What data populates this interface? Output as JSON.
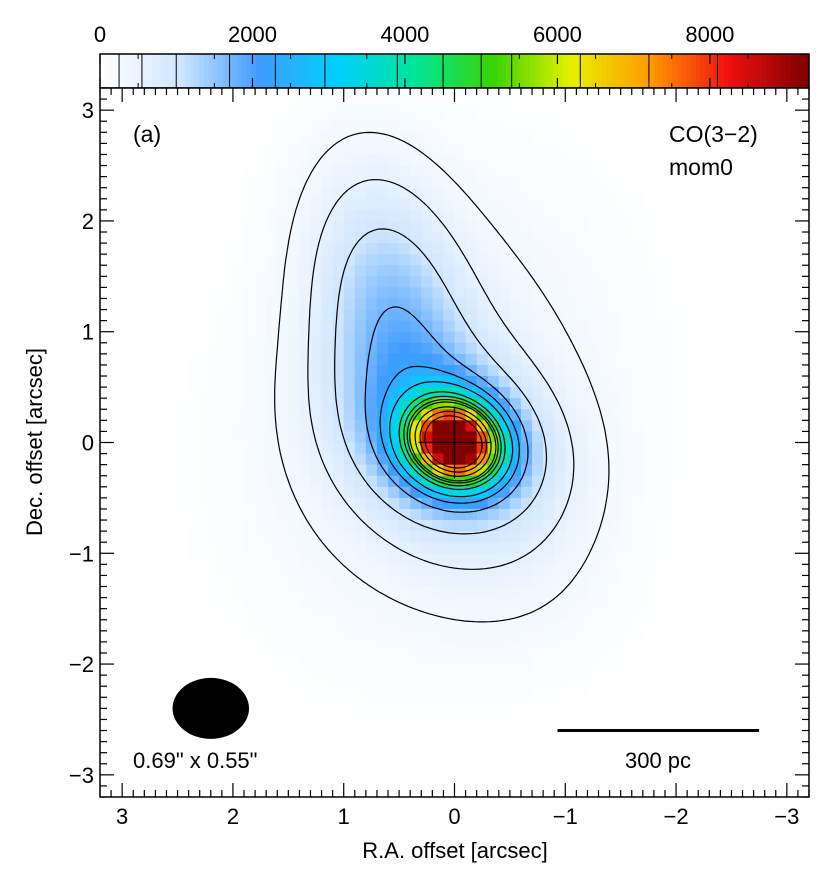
{
  "chart_data": {
    "type": "heatmap",
    "panel_label": "(a)",
    "annotation": [
      "CO(3−2)",
      "mom0"
    ],
    "xlabel": "R.A. offset [arcsec]",
    "ylabel": "Dec. offset [arcsec]",
    "xlim": [
      3.2,
      -3.2
    ],
    "ylim": [
      -3.2,
      3.2
    ],
    "x_ticks": [
      3,
      2,
      1,
      0,
      -1,
      -2,
      -3
    ],
    "y_ticks": [
      3,
      2,
      1,
      0,
      -1,
      -2,
      -3
    ],
    "x_tick_labels": [
      "3",
      "2",
      "1",
      "0",
      "−1",
      "−2",
      "−3"
    ],
    "y_tick_labels": [
      "3",
      "2",
      "1",
      "0",
      "−1",
      "−2",
      "−3"
    ],
    "colorbar": {
      "range": [
        0,
        9300
      ],
      "ticks": [
        0,
        2000,
        4000,
        6000,
        8000
      ],
      "tick_labels": [
        "0",
        "2000",
        "4000",
        "6000",
        "8000"
      ],
      "contour_levels": [
        250,
        550,
        1000,
        1700,
        2300,
        2950,
        3900,
        4500,
        5000,
        5400,
        6300,
        7200,
        8100
      ]
    },
    "peak": {
      "x": 0.0,
      "y": 0.0,
      "value": 9300
    },
    "components": [
      {
        "x": 0.0,
        "y": 0.0,
        "sx": 0.28,
        "sy": 0.24,
        "theta": 0.45,
        "amp": 9200
      },
      {
        "x": 0.0,
        "y": 0.0,
        "sx": 0.65,
        "sy": 0.5,
        "theta": 0.5,
        "amp": 1500
      },
      {
        "x": 0.55,
        "y": 1.1,
        "sx": 0.45,
        "sy": 0.9,
        "theta": -0.2,
        "amp": 1300
      },
      {
        "x": 0.2,
        "y": 0.3,
        "sx": 1.0,
        "sy": 1.3,
        "theta": 0.35,
        "amp": 450
      },
      {
        "x": -0.5,
        "y": -1.1,
        "sx": 0.7,
        "sy": 0.6,
        "theta": 0.6,
        "amp": 180
      }
    ],
    "cross_marker": {
      "x": 0.0,
      "y": 0.0
    },
    "beam": {
      "x": 2.2,
      "y": -2.4,
      "major_arcsec": 0.69,
      "minor_arcsec": 0.55,
      "label": "0.69\" x 0.55\""
    },
    "scale_bar": {
      "x_from": -0.93,
      "x_to": -2.75,
      "y": -2.6,
      "label": "300 pc"
    },
    "colormap": [
      "#ffffff",
      "#cfe6ff",
      "#3f9bff",
      "#00d0ff",
      "#00e69a",
      "#39d400",
      "#e8f000",
      "#ff9a00",
      "#f01010",
      "#800000"
    ]
  }
}
